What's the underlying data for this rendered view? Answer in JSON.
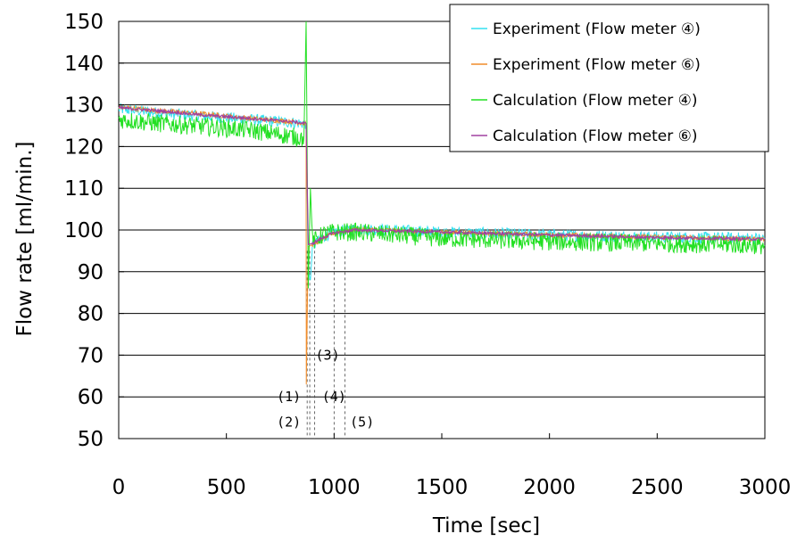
{
  "chart_data": {
    "type": "line",
    "title": "",
    "xlabel": "Time [sec]",
    "ylabel": "Flow rate [ml/min.]",
    "xlim": [
      0,
      3000
    ],
    "ylim": [
      50,
      150
    ],
    "x_ticks": [
      "0",
      "500",
      "1000",
      "1500",
      "2000",
      "2500",
      "3000"
    ],
    "y_ticks": [
      "50",
      "60",
      "70",
      "80",
      "90",
      "100",
      "110",
      "120",
      "130",
      "140",
      "150"
    ],
    "grid": "horizontal",
    "legend_position": "top-right",
    "series": [
      {
        "name": "Experiment (Flow meter ④)",
        "color": "#33e0f0",
        "points": [
          [
            0,
            129
          ],
          [
            200,
            128
          ],
          [
            400,
            127.3
          ],
          [
            600,
            126.5
          ],
          [
            800,
            125.8
          ],
          [
            870,
            125.5
          ],
          [
            880,
            90
          ],
          [
            890,
            88
          ],
          [
            900,
            96
          ],
          [
            950,
            98.5
          ],
          [
            1000,
            99.5
          ],
          [
            1100,
            100.3
          ],
          [
            1500,
            99.5
          ],
          [
            2000,
            98.8
          ],
          [
            2500,
            98.3
          ],
          [
            3000,
            98
          ]
        ]
      },
      {
        "name": "Experiment (Flow meter ⑥)",
        "color": "#f08c2a",
        "points": [
          [
            0,
            129.5
          ],
          [
            200,
            128.5
          ],
          [
            400,
            127.8
          ],
          [
            600,
            126.8
          ],
          [
            800,
            126
          ],
          [
            870,
            125.5
          ],
          [
            871,
            63
          ],
          [
            880,
            96
          ],
          [
            900,
            96.5
          ],
          [
            950,
            98
          ],
          [
            1000,
            99.3
          ],
          [
            1100,
            100.2
          ],
          [
            1500,
            99.5
          ],
          [
            2000,
            98.8
          ],
          [
            2500,
            98.3
          ],
          [
            3000,
            97.8
          ]
        ]
      },
      {
        "name": "Calculation (Flow meter ④)",
        "color": "#22e022",
        "points": [
          [
            0,
            126.5
          ],
          [
            200,
            125.5
          ],
          [
            400,
            124.8
          ],
          [
            600,
            124
          ],
          [
            800,
            122.5
          ],
          [
            860,
            122
          ],
          [
            870,
            150
          ],
          [
            880,
            86
          ],
          [
            890,
            110
          ],
          [
            900,
            97
          ],
          [
            950,
            99
          ],
          [
            1000,
            99.5
          ],
          [
            1100,
            99.5
          ],
          [
            1500,
            98
          ],
          [
            2000,
            97.2
          ],
          [
            2500,
            96.8
          ],
          [
            3000,
            96.3
          ]
        ]
      },
      {
        "name": "Calculation (Flow meter ⑥)",
        "color": "#a040a0",
        "points": [
          [
            0,
            129.3
          ],
          [
            200,
            128.5
          ],
          [
            400,
            127.5
          ],
          [
            600,
            126.8
          ],
          [
            800,
            126
          ],
          [
            870,
            125.5
          ],
          [
            880,
            96.5
          ],
          [
            900,
            96.8
          ],
          [
            950,
            98.2
          ],
          [
            1000,
            99.3
          ],
          [
            1100,
            100
          ],
          [
            1500,
            99.5
          ],
          [
            2000,
            98.8
          ],
          [
            2500,
            98.2
          ],
          [
            3000,
            97.8
          ]
        ]
      }
    ],
    "annotations": {
      "event_times": [
        875,
        887,
        910,
        1000,
        1050
      ],
      "labels": [
        {
          "text": "(1)",
          "x": 790,
          "y": 60
        },
        {
          "text": "(2)",
          "x": 790,
          "y": 54
        },
        {
          "text": "(3)",
          "x": 970,
          "y": 70
        },
        {
          "text": "(4)",
          "x": 1000,
          "y": 60
        },
        {
          "text": "(5)",
          "x": 1130,
          "y": 54
        }
      ]
    }
  }
}
